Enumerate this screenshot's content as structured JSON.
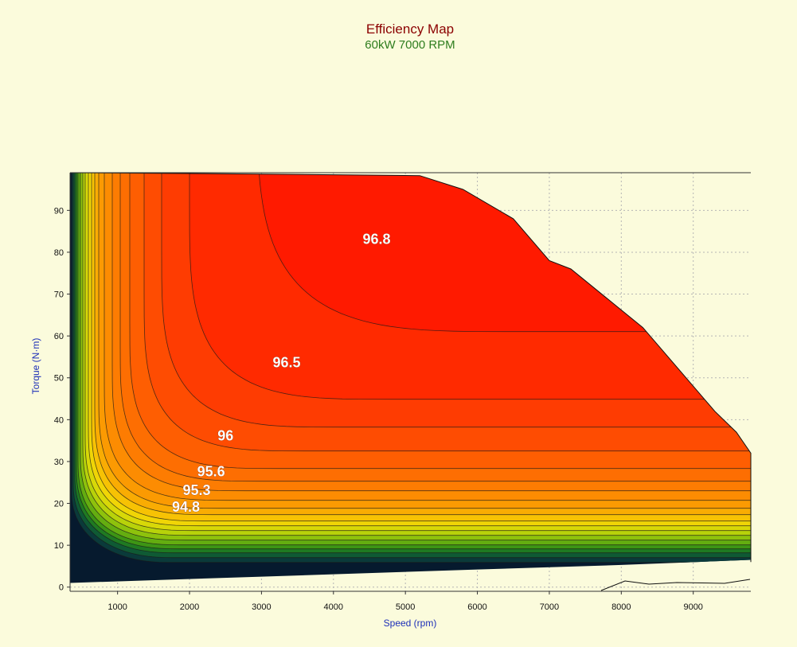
{
  "chart_data": {
    "type": "heatmap",
    "subtype": "contour",
    "title": "Efficiency Map",
    "subtitle": "60kW 7000 RPM",
    "xlabel": "Speed (rpm)",
    "ylabel": "Torque (N·m)",
    "xlim": [
      340,
      9800
    ],
    "ylim": [
      -1,
      99
    ],
    "xticks": [
      1000,
      2000,
      3000,
      4000,
      5000,
      6000,
      7000,
      8000,
      9000
    ],
    "yticks": [
      0,
      10,
      20,
      30,
      40,
      50,
      60,
      70,
      80,
      90
    ],
    "grid": true,
    "torque_envelope": [
      [
        340,
        99
      ],
      [
        2200,
        98.8
      ],
      [
        5200,
        98.3
      ],
      [
        5800,
        95
      ],
      [
        6500,
        88
      ],
      [
        7000,
        78
      ],
      [
        7300,
        76
      ],
      [
        7800,
        69
      ],
      [
        8300,
        62
      ],
      [
        8800,
        52
      ],
      [
        9300,
        42
      ],
      [
        9600,
        37
      ],
      [
        9800,
        32
      ],
      [
        9800,
        6
      ]
    ],
    "lower_boundary": [
      [
        340,
        1
      ],
      [
        3000,
        2.5
      ],
      [
        6000,
        4.2
      ],
      [
        8000,
        5.3
      ],
      [
        9800,
        6.5
      ]
    ],
    "contour_levels": [
      96.8,
      96.5,
      96,
      95.6,
      95.3,
      94.8
    ],
    "contour_labels": [
      {
        "text": "96.8",
        "x": 4600,
        "y": 82
      },
      {
        "text": "96.5",
        "x": 3350,
        "y": 52.5
      },
      {
        "text": "96",
        "x": 2500,
        "y": 35
      },
      {
        "text": "95.6",
        "x": 2300,
        "y": 26.5
      },
      {
        "text": "95.3",
        "x": 2100,
        "y": 22
      },
      {
        "text": "94.8",
        "x": 1950,
        "y": 18
      }
    ]
  }
}
